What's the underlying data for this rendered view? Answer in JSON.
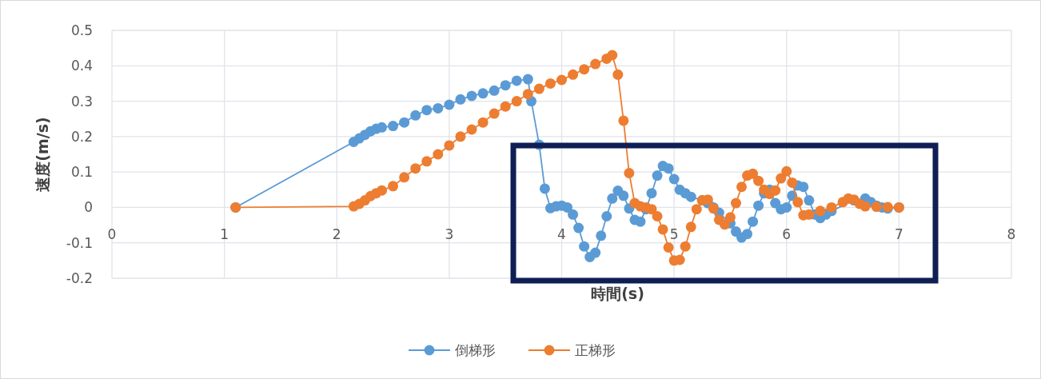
{
  "chart_data": {
    "type": "line",
    "xlabel": "時間(s)",
    "ylabel": "速度(m/s)",
    "xlim": [
      0,
      8
    ],
    "ylim": [
      -0.2,
      0.5
    ],
    "xticks": [
      0,
      1,
      2,
      3,
      4,
      5,
      6,
      7,
      8
    ],
    "yticks": [
      -0.2,
      -0.1,
      0,
      0.1,
      0.2,
      0.3,
      0.4,
      0.5
    ],
    "grid": true,
    "legend": "bottom",
    "marker": "circle",
    "series": [
      {
        "name": "倒梯形",
        "color": "#5b9bd5",
        "x": [
          1.1,
          2.15,
          2.2,
          2.25,
          2.3,
          2.35,
          2.4,
          2.5,
          2.6,
          2.7,
          2.8,
          2.9,
          3.0,
          3.1,
          3.2,
          3.3,
          3.4,
          3.5,
          3.6,
          3.7,
          3.73,
          3.8,
          3.85,
          3.9,
          3.95,
          4.0,
          4.05,
          4.1,
          4.15,
          4.2,
          4.25,
          4.3,
          4.35,
          4.4,
          4.45,
          4.5,
          4.55,
          4.6,
          4.65,
          4.7,
          4.75,
          4.8,
          4.85,
          4.9,
          4.95,
          5.0,
          5.05,
          5.1,
          5.15,
          5.25,
          5.3,
          5.35,
          5.4,
          5.5,
          5.55,
          5.6,
          5.65,
          5.7,
          5.75,
          5.8,
          5.85,
          5.9,
          5.95,
          6.0,
          6.05,
          6.1,
          6.15,
          6.2,
          6.25,
          6.3,
          6.35,
          6.4,
          6.6,
          6.7,
          6.75,
          6.8,
          6.85,
          6.9,
          7.0
        ],
        "values": [
          0,
          0.185,
          0.195,
          0.205,
          0.215,
          0.222,
          0.226,
          0.23,
          0.24,
          0.26,
          0.275,
          0.28,
          0.29,
          0.305,
          0.315,
          0.322,
          0.33,
          0.345,
          0.358,
          0.362,
          0.3,
          0.177,
          0.053,
          -0.002,
          0.003,
          0.005,
          0.0,
          -0.02,
          -0.058,
          -0.11,
          -0.14,
          -0.128,
          -0.08,
          -0.025,
          0.025,
          0.047,
          0.033,
          -0.003,
          -0.035,
          -0.04,
          -0.005,
          0.04,
          0.09,
          0.117,
          0.11,
          0.08,
          0.05,
          0.04,
          0.03,
          0.02,
          0.012,
          0.0,
          -0.015,
          -0.045,
          -0.068,
          -0.085,
          -0.075,
          -0.04,
          0.005,
          0.04,
          0.05,
          0.012,
          -0.005,
          0.0,
          0.033,
          0.062,
          0.058,
          0.02,
          -0.02,
          -0.03,
          -0.02,
          -0.01,
          0.02,
          0.025,
          0.015,
          0.005,
          0.0,
          -0.003,
          0.0
        ]
      },
      {
        "name": "正梯形",
        "color": "#ed7d31",
        "x": [
          1.1,
          2.15,
          2.2,
          2.25,
          2.3,
          2.35,
          2.4,
          2.5,
          2.6,
          2.7,
          2.8,
          2.9,
          3.0,
          3.1,
          3.2,
          3.3,
          3.4,
          3.5,
          3.6,
          3.7,
          3.8,
          3.9,
          4.0,
          4.1,
          4.2,
          4.3,
          4.4,
          4.45,
          4.5,
          4.55,
          4.6,
          4.65,
          4.7,
          4.75,
          4.8,
          4.85,
          4.9,
          4.95,
          5.0,
          5.05,
          5.1,
          5.15,
          5.2,
          5.25,
          5.3,
          5.35,
          5.4,
          5.45,
          5.5,
          5.55,
          5.6,
          5.65,
          5.7,
          5.75,
          5.8,
          5.85,
          5.9,
          5.95,
          6.0,
          6.05,
          6.1,
          6.15,
          6.2,
          6.3,
          6.4,
          6.5,
          6.55,
          6.6,
          6.65,
          6.7,
          6.8,
          6.9,
          7.0
        ],
        "values": [
          0,
          0.003,
          0.01,
          0.02,
          0.032,
          0.04,
          0.048,
          0.06,
          0.085,
          0.11,
          0.13,
          0.15,
          0.175,
          0.2,
          0.22,
          0.24,
          0.265,
          0.285,
          0.3,
          0.32,
          0.335,
          0.35,
          0.36,
          0.375,
          0.39,
          0.405,
          0.42,
          0.43,
          0.375,
          0.245,
          0.097,
          0.012,
          0.003,
          0.0,
          -0.005,
          -0.025,
          -0.062,
          -0.113,
          -0.15,
          -0.148,
          -0.11,
          -0.055,
          -0.005,
          0.02,
          0.022,
          -0.003,
          -0.035,
          -0.048,
          -0.028,
          0.012,
          0.058,
          0.09,
          0.095,
          0.075,
          0.05,
          0.038,
          0.048,
          0.082,
          0.102,
          0.07,
          0.015,
          -0.022,
          -0.02,
          -0.01,
          0.0,
          0.015,
          0.025,
          0.022,
          0.01,
          0.003,
          0.002,
          0.001,
          0.0
        ]
      }
    ]
  }
}
